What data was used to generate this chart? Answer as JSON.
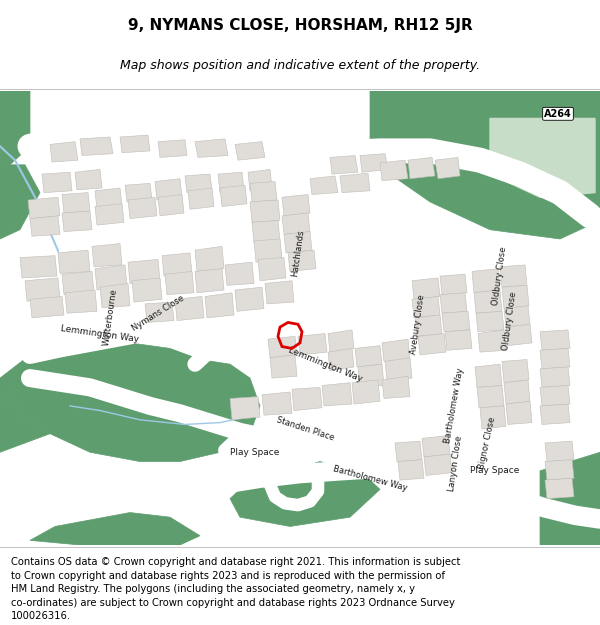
{
  "title_line1": "9, NYMANS CLOSE, HORSHAM, RH12 5JR",
  "title_line2": "Map shows position and indicative extent of the property.",
  "footer": "Contains OS data © Crown copyright and database right 2021. This information is subject\nto Crown copyright and database rights 2023 and is reproduced with the permission of\nHM Land Registry. The polygons (including the associated geometry, namely x, y\nco-ordinates) are subject to Crown copyright and database rights 2023 Ordnance Survey\n100026316.",
  "bg_color": "#ffffff",
  "map_bg": "#f5f3f0",
  "green_dark": "#5e9e6e",
  "green_light": "#c8ddc8",
  "road_color": "#ffffff",
  "road_outline": "#cccccc",
  "building_color": "#e0ddd8",
  "building_outline": "#c0bdb8",
  "water_color": "#9ec8e8",
  "plot_color": "#dd0000",
  "a264_color": "#5e9e6e",
  "title_fs": 11,
  "sub_fs": 9,
  "footer_fs": 7.2
}
